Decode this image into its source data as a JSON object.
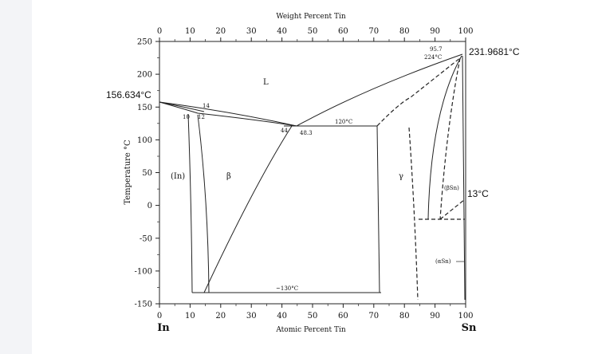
{
  "diagram": {
    "top_axis_title": "Weight Percent Tin",
    "bottom_axis_title": "Atomic Percent Tin",
    "left_axis_title": "Temperature °C",
    "top_ticks": [
      "0",
      "10",
      "20",
      "30",
      "40",
      "50",
      "60",
      "70",
      "80",
      "90",
      "100"
    ],
    "bottom_ticks": [
      "0",
      "10",
      "20",
      "30",
      "40",
      "50",
      "60",
      "70",
      "80",
      "90",
      "100"
    ],
    "left_ticks": [
      "250",
      "200",
      "150",
      "100",
      "50",
      "0",
      "-50",
      "-100",
      "-150"
    ],
    "element_left": "In",
    "element_right": "Sn",
    "melting_in": "156.634°C",
    "melting_sn": "231.9681°C",
    "transition_sn": "13°C",
    "phases": {
      "liquid": "L",
      "indium": "(In)",
      "beta": "β",
      "gamma": "γ",
      "beta_sn": "(βSn)",
      "alpha_sn": "(αSn)"
    },
    "annotations": {
      "a14": "14",
      "a10": "10",
      "a12": "12",
      "a44": "44",
      "a483": "48.3",
      "t120": "120°C",
      "t130": "~130°C",
      "a957": "95.7",
      "t224": "224°C"
    }
  }
}
